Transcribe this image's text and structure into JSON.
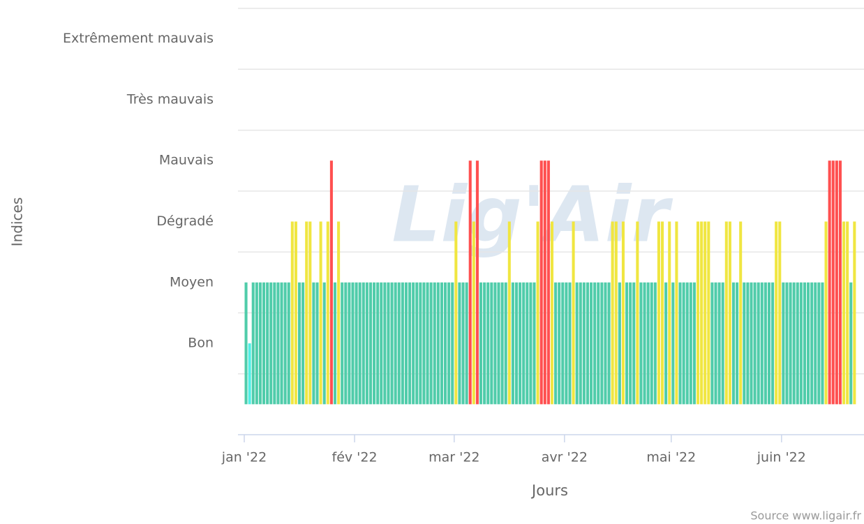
{
  "chart_data": {
    "type": "bar",
    "y_title": "Indices",
    "x_title": "Jours",
    "credits": "Source www.ligair.fr",
    "watermark": "Lig'Air",
    "ylim": [
      -0.5,
      6.5
    ],
    "yticks": [
      {
        "value": 1,
        "label": "Bon",
        "color": "#50f0e6"
      },
      {
        "value": 2,
        "label": "Moyen",
        "color": "#50ccaa"
      },
      {
        "value": 3,
        "label": "Dégradé",
        "color": "#f0e641"
      },
      {
        "value": 4,
        "label": "Mauvais",
        "color": "#ff5050"
      },
      {
        "value": 5,
        "label": "Très mauvais",
        "color": "#960032"
      },
      {
        "value": 6,
        "label": "Extrêmement mauvais",
        "color": "#7d2181"
      }
    ],
    "ygrid": [
      0.5,
      1.5,
      2.5,
      3.5,
      4.5,
      5.5,
      6.5
    ],
    "xlim": [
      "2022-01-01",
      "2022-06-23"
    ],
    "xticks": [
      {
        "value": "2022-01-01",
        "label": "jan '22"
      },
      {
        "value": "2022-02-01",
        "label": "fév '22"
      },
      {
        "value": "2022-03-01",
        "label": "mar '22"
      },
      {
        "value": "2022-04-01",
        "label": "avr '22"
      },
      {
        "value": "2022-05-01",
        "label": "mai '22"
      },
      {
        "value": "2022-06-01",
        "label": "juin '22"
      }
    ],
    "x": [
      "2022-01-01",
      "2022-01-02",
      "2022-01-03",
      "2022-01-04",
      "2022-01-05",
      "2022-01-06",
      "2022-01-07",
      "2022-01-08",
      "2022-01-09",
      "2022-01-10",
      "2022-01-11",
      "2022-01-12",
      "2022-01-13",
      "2022-01-14",
      "2022-01-15",
      "2022-01-16",
      "2022-01-17",
      "2022-01-18",
      "2022-01-19",
      "2022-01-20",
      "2022-01-21",
      "2022-01-22",
      "2022-01-23",
      "2022-01-24",
      "2022-01-25",
      "2022-01-26",
      "2022-01-27",
      "2022-01-28",
      "2022-01-29",
      "2022-01-30",
      "2022-01-31",
      "2022-02-01",
      "2022-02-02",
      "2022-02-03",
      "2022-02-04",
      "2022-02-05",
      "2022-02-06",
      "2022-02-07",
      "2022-02-08",
      "2022-02-09",
      "2022-02-10",
      "2022-02-11",
      "2022-02-12",
      "2022-02-13",
      "2022-02-14",
      "2022-02-15",
      "2022-02-16",
      "2022-02-17",
      "2022-02-18",
      "2022-02-19",
      "2022-02-20",
      "2022-02-21",
      "2022-02-22",
      "2022-02-23",
      "2022-02-24",
      "2022-02-25",
      "2022-02-26",
      "2022-02-27",
      "2022-02-28",
      "2022-03-01",
      "2022-03-02",
      "2022-03-03",
      "2022-03-04",
      "2022-03-05",
      "2022-03-06",
      "2022-03-07",
      "2022-03-08",
      "2022-03-09",
      "2022-03-10",
      "2022-03-11",
      "2022-03-12",
      "2022-03-13",
      "2022-03-14",
      "2022-03-15",
      "2022-03-16",
      "2022-03-17",
      "2022-03-18",
      "2022-03-19",
      "2022-03-20",
      "2022-03-21",
      "2022-03-22",
      "2022-03-23",
      "2022-03-24",
      "2022-03-25",
      "2022-03-26",
      "2022-03-27",
      "2022-03-28",
      "2022-03-29",
      "2022-03-30",
      "2022-03-31",
      "2022-04-01",
      "2022-04-02",
      "2022-04-03",
      "2022-04-04",
      "2022-04-05",
      "2022-04-06",
      "2022-04-07",
      "2022-04-08",
      "2022-04-09",
      "2022-04-10",
      "2022-04-11",
      "2022-04-12",
      "2022-04-13",
      "2022-04-14",
      "2022-04-15",
      "2022-04-16",
      "2022-04-17",
      "2022-04-18",
      "2022-04-19",
      "2022-04-20",
      "2022-04-21",
      "2022-04-22",
      "2022-04-23",
      "2022-04-24",
      "2022-04-25",
      "2022-04-26",
      "2022-04-27",
      "2022-04-28",
      "2022-04-29",
      "2022-04-30",
      "2022-05-01",
      "2022-05-02",
      "2022-05-03",
      "2022-05-04",
      "2022-05-05",
      "2022-05-06",
      "2022-05-07",
      "2022-05-08",
      "2022-05-09",
      "2022-05-10",
      "2022-05-11",
      "2022-05-12",
      "2022-05-13",
      "2022-05-14",
      "2022-05-15",
      "2022-05-16",
      "2022-05-17",
      "2022-05-18",
      "2022-05-19",
      "2022-05-20",
      "2022-05-21",
      "2022-05-22",
      "2022-05-23",
      "2022-05-24",
      "2022-05-25",
      "2022-05-26",
      "2022-05-27",
      "2022-05-28",
      "2022-05-29",
      "2022-05-30",
      "2022-05-31",
      "2022-06-01",
      "2022-06-02",
      "2022-06-03",
      "2022-06-04",
      "2022-06-05",
      "2022-06-06",
      "2022-06-07",
      "2022-06-08",
      "2022-06-09",
      "2022-06-10",
      "2022-06-11",
      "2022-06-12",
      "2022-06-13",
      "2022-06-14",
      "2022-06-15",
      "2022-06-16",
      "2022-06-17",
      "2022-06-18",
      "2022-06-19",
      "2022-06-20",
      "2022-06-21"
    ],
    "values": [
      2,
      1,
      2,
      2,
      2,
      2,
      2,
      2,
      2,
      2,
      2,
      2,
      2,
      3,
      3,
      2,
      2,
      3,
      3,
      2,
      2,
      3,
      2,
      3,
      4,
      2,
      3,
      2,
      2,
      2,
      2,
      2,
      2,
      2,
      2,
      2,
      2,
      2,
      2,
      2,
      2,
      2,
      2,
      2,
      2,
      2,
      2,
      2,
      2,
      2,
      2,
      2,
      2,
      2,
      2,
      2,
      2,
      2,
      2,
      3,
      2,
      2,
      2,
      4,
      3,
      4,
      2,
      2,
      2,
      2,
      2,
      2,
      2,
      2,
      3,
      2,
      2,
      2,
      2,
      2,
      2,
      2,
      3,
      4,
      4,
      4,
      3,
      2,
      2,
      2,
      2,
      2,
      3,
      2,
      2,
      2,
      2,
      2,
      2,
      2,
      2,
      2,
      2,
      3,
      3,
      2,
      3,
      2,
      2,
      2,
      3,
      2,
      2,
      2,
      2,
      2,
      3,
      3,
      2,
      3,
      2,
      3,
      2,
      2,
      2,
      2,
      2,
      3,
      3,
      3,
      3,
      2,
      2,
      2,
      2,
      3,
      3,
      2,
      2,
      3,
      2,
      2,
      2,
      2,
      2,
      2,
      2,
      2,
      2,
      3,
      3,
      2,
      2,
      2,
      2,
      2,
      2,
      2,
      2,
      2,
      2,
      2,
      2,
      3,
      4,
      4,
      4,
      4,
      3,
      3,
      2,
      3
    ]
  }
}
